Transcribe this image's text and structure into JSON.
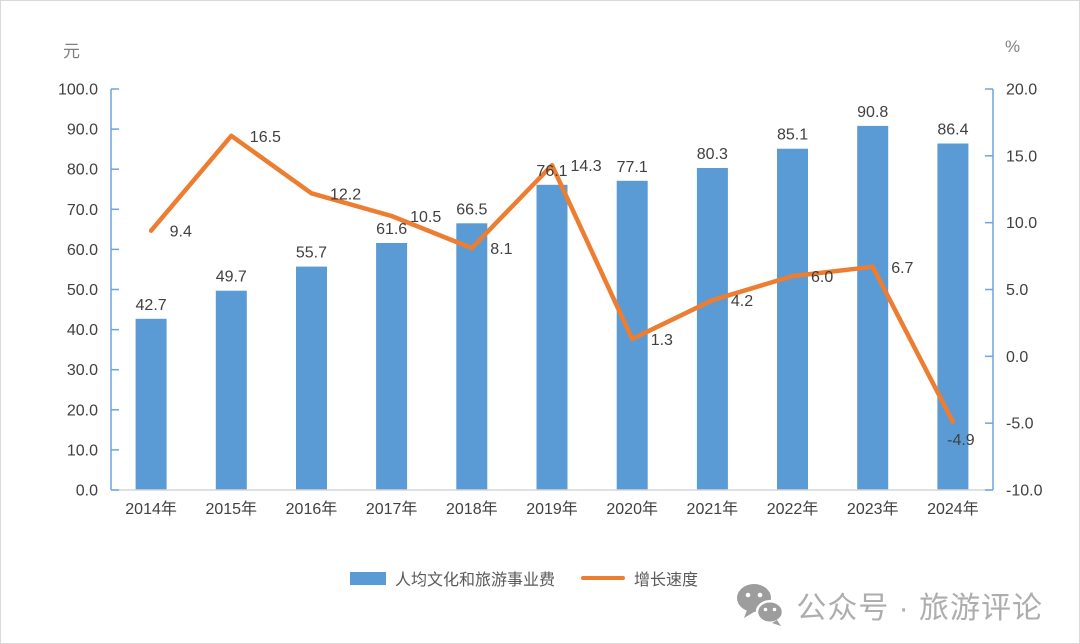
{
  "chart": {
    "left_unit": "元",
    "right_unit": "%"
  },
  "chart_data": {
    "type": "bar",
    "subtype": "combo-bar-line",
    "categories": [
      "2014年",
      "2015年",
      "2016年",
      "2017年",
      "2018年",
      "2019年",
      "2020年",
      "2021年",
      "2022年",
      "2023年",
      "2024年"
    ],
    "series": [
      {
        "name": "人均文化和旅游事业费",
        "type": "bar",
        "axis": "left",
        "values": [
          42.7,
          49.7,
          55.7,
          61.6,
          66.5,
          76.1,
          77.1,
          80.3,
          85.1,
          90.8,
          86.4
        ]
      },
      {
        "name": "增长速度",
        "type": "line",
        "axis": "right",
        "values": [
          9.4,
          16.5,
          12.2,
          10.5,
          8.1,
          14.3,
          1.3,
          4.2,
          6.0,
          6.7,
          -4.9
        ]
      }
    ],
    "left_axis": {
      "unit": "元",
      "min": 0,
      "max": 100,
      "step": 10
    },
    "right_axis": {
      "unit": "%",
      "min": -10,
      "max": 20,
      "step": 5
    },
    "grid": false,
    "data_labels": true,
    "legend_position": "bottom"
  },
  "legend": [
    {
      "label": "人均文化和旅游事业费",
      "swatch": "bar"
    },
    {
      "label": "增长速度",
      "swatch": "line"
    }
  ],
  "footer": {
    "icon": "wechat-icon",
    "text": "公众号 · 旅游评论"
  },
  "colors": {
    "bar": "#5B9BD5",
    "line": "#ED7D31",
    "axis": "#6FA4DB",
    "x_axis_line": "#D6D6D6",
    "data_label": "#404040",
    "tick_label": "#404040",
    "unit_label": "#7F7F7F",
    "legend_text": "#595959",
    "footer_gray": "#ADADAD",
    "wechat_icon_gray": "#9D9D9D"
  }
}
